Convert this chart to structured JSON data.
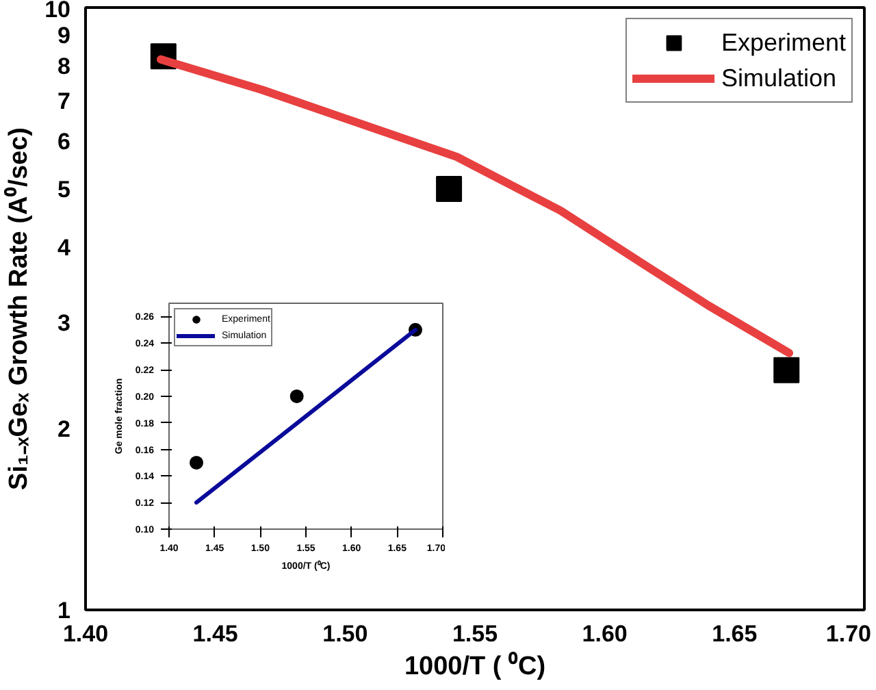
{
  "chart_data": [
    {
      "type": "scatter",
      "xlabel": "1000/T ( ⁰C)",
      "ylabel": "Si₁₋ₓGeₓ Growth Rate (A⁰/sec)",
      "log": "y",
      "xlim": [
        1.4,
        1.7
      ],
      "xticks": [
        {
          "value": 1.4,
          "label": "1.40"
        },
        1.45,
        {
          "value": 1.5,
          "label": "1.50"
        },
        1.55,
        {
          "value": 1.6,
          "label": "1.60"
        },
        1.65,
        {
          "value": 1.7,
          "label": "1.70"
        }
      ],
      "ylim": [
        1,
        10
      ],
      "yticks": [
        1,
        2,
        3,
        4,
        5,
        6,
        7,
        8,
        9,
        10
      ],
      "grid": false,
      "legend": "top right",
      "series": [
        {
          "name": "Experiment",
          "marker": "square",
          "color": "#000000",
          "x": [
            1.43,
            1.54,
            1.67
          ],
          "values": [
            8.3,
            5.0,
            2.5
          ]
        },
        {
          "name": "Simulation",
          "type": "line",
          "marker": "none",
          "color": "#e84040",
          "x": [
            1.429,
            1.468,
            1.502,
            1.543,
            1.583,
            1.617,
            1.64,
            1.671
          ],
          "values": [
            8.2,
            7.3,
            6.5,
            5.65,
            4.6,
            3.7,
            3.2,
            2.67
          ]
        }
      ]
    },
    {
      "type": "scatter",
      "xlabel": "1000/T (⁰C)",
      "ylabel": "Ge mole fraction",
      "xlim": [
        1.4,
        1.7
      ],
      "xticks": [
        {
          "value": 1.4,
          "label": "1.40"
        },
        1.45,
        {
          "value": 1.5,
          "label": "1.50"
        },
        1.55,
        {
          "value": 1.6,
          "label": "1.60"
        },
        1.65,
        {
          "value": 1.7,
          "label": "1.70"
        }
      ],
      "ylim": [
        0.1,
        0.27
      ],
      "yticks": [
        {
          "value": 0.1,
          "label": "0.10"
        },
        0.12,
        0.14,
        0.16,
        0.18,
        {
          "value": 0.2,
          "label": "0.20"
        },
        0.22,
        0.24,
        0.26
      ],
      "grid": false,
      "legend": "top left",
      "series": [
        {
          "name": "Experiment",
          "marker": "circle",
          "color": "#000000",
          "x": [
            1.43,
            1.54,
            1.67
          ],
          "values": [
            0.15,
            0.2,
            0.25
          ]
        },
        {
          "name": "Simulation",
          "type": "line",
          "marker": "none",
          "color": "#0a0a9a",
          "x": [
            1.43,
            1.67
          ],
          "values": [
            0.12,
            0.25
          ]
        }
      ]
    }
  ]
}
